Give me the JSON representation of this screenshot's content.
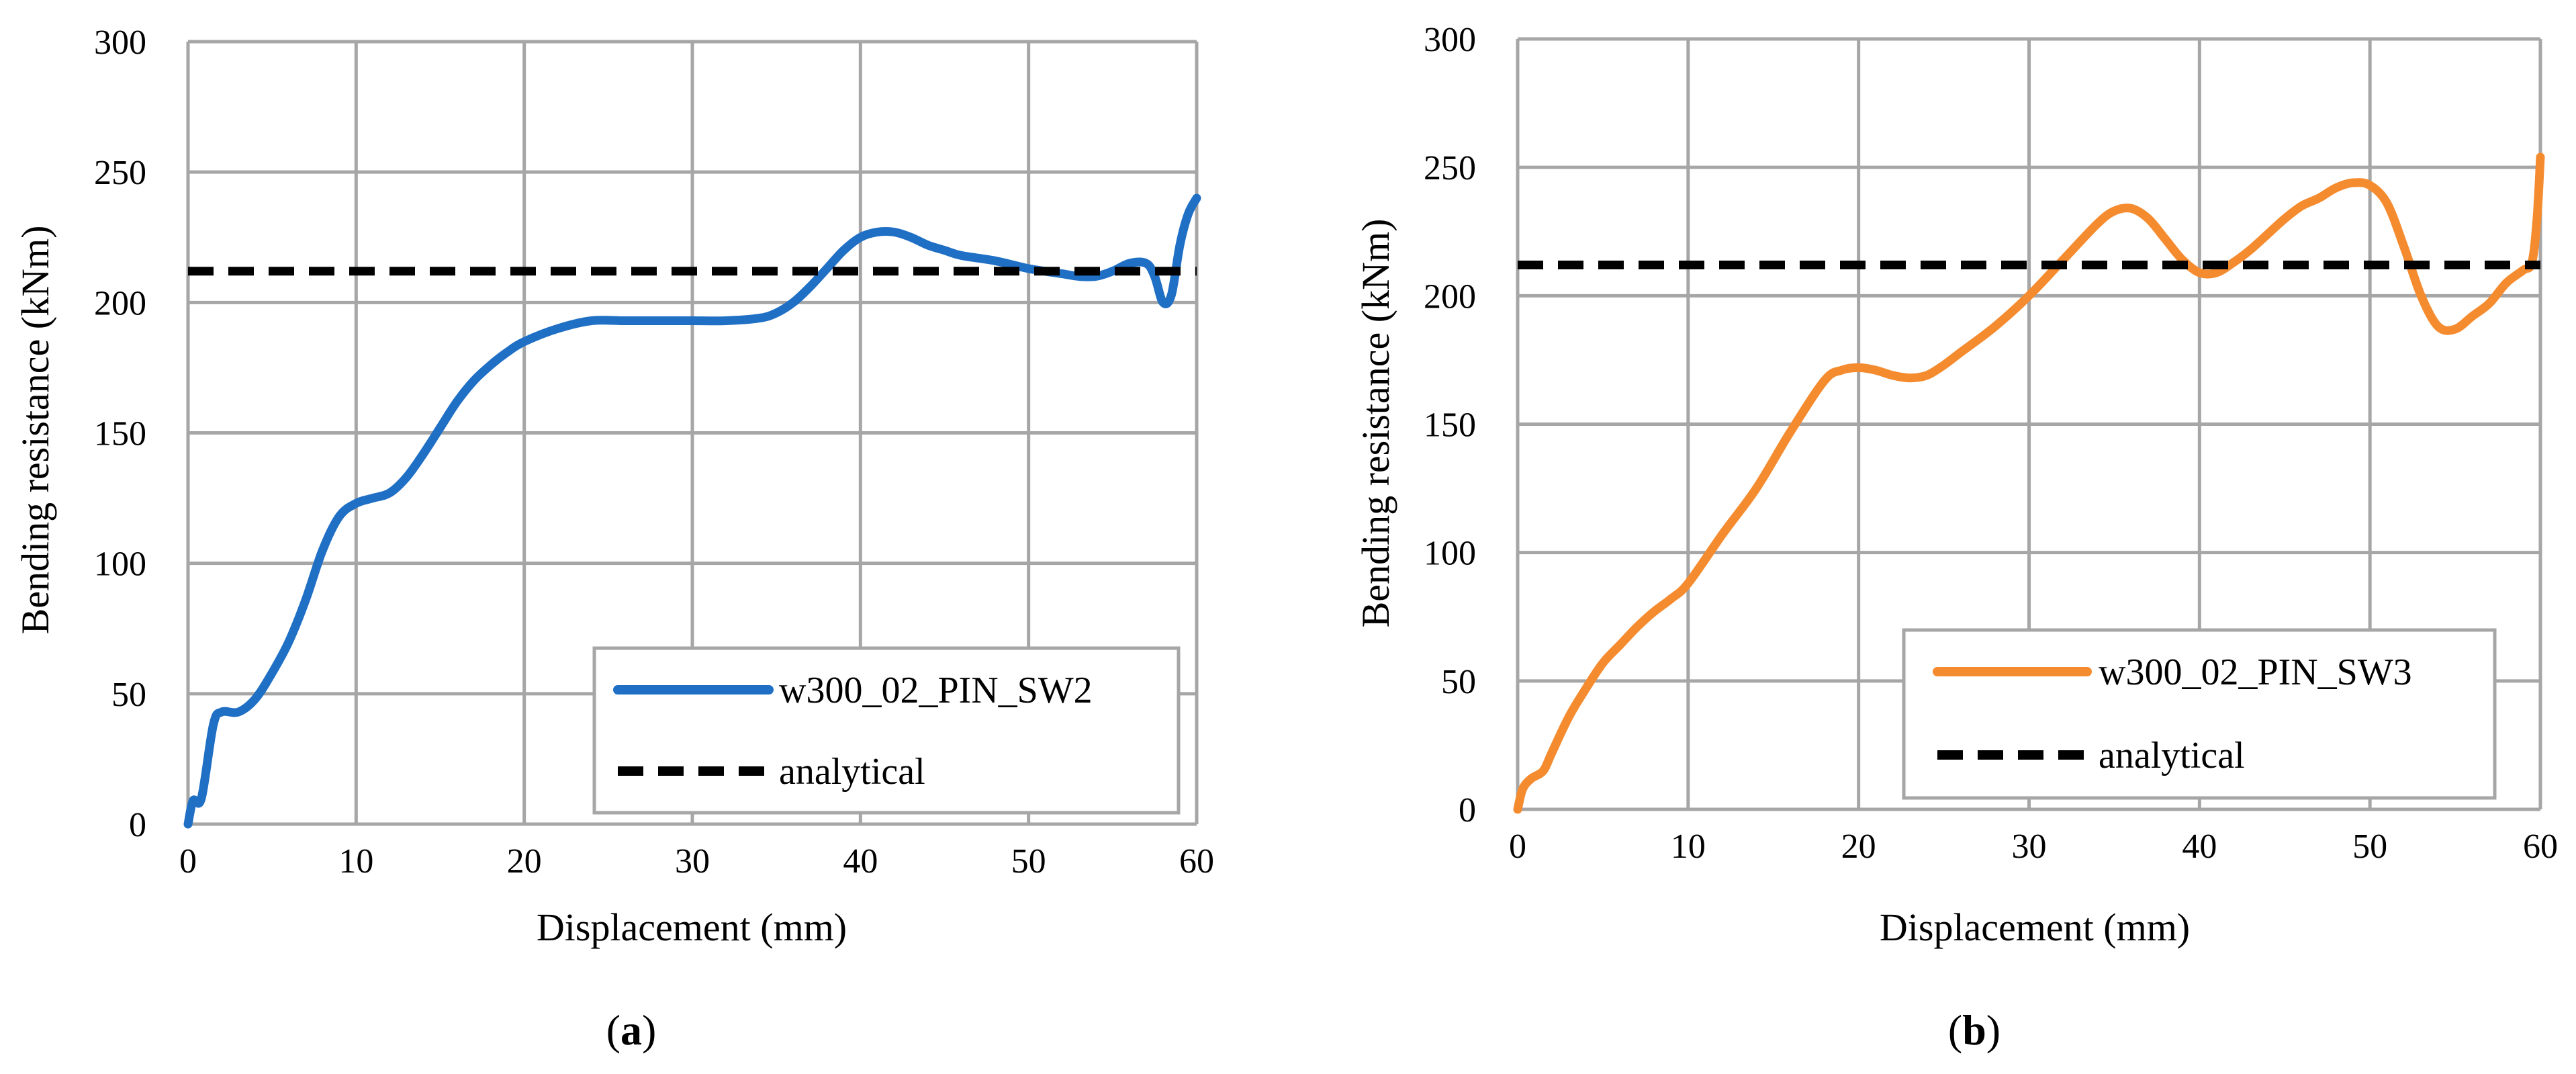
{
  "chart_data": [
    {
      "type": "line",
      "panel_label": "a",
      "xlabel": "Displacement (mm)",
      "ylabel": "Bending resistance (kNm)",
      "xlim": [
        0,
        60
      ],
      "ylim": [
        0,
        300
      ],
      "xticks": [
        0,
        10,
        20,
        30,
        40,
        50,
        60
      ],
      "yticks": [
        0,
        50,
        100,
        150,
        200,
        250,
        300
      ],
      "grid": true,
      "legend_position": "bottom-right",
      "series": [
        {
          "name": "w300_02_PIN_SW2",
          "color": "#1f6fc5",
          "style": "solid",
          "x": [
            0,
            0.3,
            0.8,
            1.5,
            2,
            3,
            4,
            5,
            6,
            7,
            8,
            9,
            10,
            11,
            12,
            13,
            14,
            15,
            16,
            17,
            18,
            19,
            20,
            22,
            24,
            26,
            28,
            30,
            32,
            34,
            35,
            36,
            37,
            38,
            39,
            40,
            41,
            42,
            43,
            44,
            45,
            46,
            48,
            50,
            52,
            53,
            54,
            55,
            56,
            57,
            57.5,
            58,
            58.5,
            59,
            59.5,
            60
          ],
          "y": [
            0,
            9,
            10,
            38,
            43,
            43,
            48,
            58,
            70,
            86,
            105,
            118,
            123,
            125,
            127,
            133,
            142,
            152,
            162,
            170,
            176,
            181,
            185,
            190,
            193,
            193,
            193,
            193,
            193,
            194,
            196,
            200,
            206,
            213,
            220,
            225,
            227,
            227,
            225,
            222,
            220,
            218,
            216,
            213,
            211,
            210,
            210,
            212,
            215,
            215,
            210,
            200,
            203,
            222,
            234,
            240
          ]
        },
        {
          "name": "analytical",
          "color": "#000000",
          "style": "dashed",
          "x": [
            0,
            60
          ],
          "y": [
            212,
            212
          ]
        }
      ]
    },
    {
      "type": "line",
      "panel_label": "b",
      "xlabel": "Displacement (mm)",
      "ylabel": "Bending resistance (kNm)",
      "xlim": [
        0,
        60
      ],
      "ylim": [
        0,
        300
      ],
      "xticks": [
        0,
        10,
        20,
        30,
        40,
        50,
        60
      ],
      "yticks": [
        0,
        50,
        100,
        150,
        200,
        250,
        300
      ],
      "grid": true,
      "legend_position": "bottom-right",
      "series": [
        {
          "name": "w300_02_PIN_SW3",
          "color": "#f58b2f",
          "style": "solid",
          "x": [
            0,
            0.3,
            0.8,
            1.5,
            2,
            3,
            4,
            5,
            6,
            7,
            8,
            9,
            10,
            12,
            14,
            16,
            18,
            19,
            20,
            21,
            22,
            23,
            24,
            25,
            26,
            28,
            30,
            32,
            34,
            35,
            36,
            37,
            38,
            39,
            40,
            41,
            42,
            43,
            44,
            45,
            46,
            47,
            48,
            49,
            50,
            51,
            52,
            53,
            54,
            55,
            56,
            57,
            58,
            59,
            59.5,
            59.8,
            60
          ],
          "y": [
            0,
            8,
            12,
            15,
            22,
            36,
            47,
            57,
            64,
            71,
            77,
            82,
            88,
            107,
            125,
            147,
            167,
            171,
            172,
            171,
            169,
            168,
            169,
            173,
            178,
            188,
            200,
            214,
            228,
            233,
            234,
            230,
            222,
            214,
            209,
            209,
            213,
            218,
            224,
            230,
            235,
            238,
            242,
            244,
            243,
            236,
            219,
            200,
            188,
            187,
            192,
            197,
            205,
            210,
            213,
            230,
            254
          ]
        },
        {
          "name": "analytical",
          "color": "#000000",
          "style": "dashed",
          "x": [
            0,
            60
          ],
          "y": [
            212,
            212
          ]
        }
      ]
    }
  ]
}
